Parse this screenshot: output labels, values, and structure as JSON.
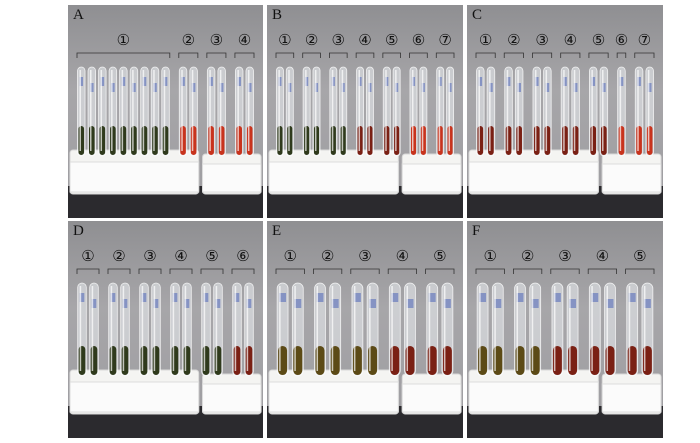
{
  "figure": {
    "panels": [
      {
        "label": "A",
        "groups": [
          "①",
          "②",
          "③",
          "④"
        ],
        "tube_counts": [
          9,
          2,
          2,
          2
        ],
        "contents": [
          "dark-green-sediment",
          "orange-red",
          "orange-red",
          "orange-red"
        ]
      },
      {
        "label": "B",
        "groups": [
          "①",
          "②",
          "③",
          "④",
          "⑤",
          "⑥",
          "⑦"
        ],
        "tube_counts": [
          2,
          2,
          2,
          2,
          2,
          2,
          2
        ],
        "contents": [
          "dark-green-sediment",
          "dark-green-sediment",
          "dark-green-sediment",
          "dark-red",
          "dark-red",
          "orange-red",
          "orange-red"
        ]
      },
      {
        "label": "C",
        "groups": [
          "①",
          "②",
          "③",
          "④",
          "⑤",
          "⑥",
          "⑦"
        ],
        "tube_counts": [
          2,
          2,
          2,
          2,
          2,
          1,
          2
        ],
        "contents": [
          "dark-red",
          "dark-red",
          "dark-red",
          "dark-red",
          "dark-red",
          "orange-red",
          "orange-red"
        ]
      },
      {
        "label": "D",
        "groups": [
          "①",
          "②",
          "③",
          "④",
          "⑤",
          "⑥"
        ],
        "tube_counts": [
          2,
          2,
          2,
          2,
          2,
          2
        ],
        "contents": [
          "dark-green-sediment",
          "dark-green-sediment",
          "dark-green-sediment",
          "dark-green-sediment",
          "dark-green-sediment",
          "dark-red"
        ]
      },
      {
        "label": "E",
        "groups": [
          "①",
          "②",
          "③",
          "④",
          "⑤"
        ],
        "tube_counts": [
          2,
          2,
          2,
          2,
          2
        ],
        "contents": [
          "olive-sediment",
          "olive-sediment",
          "olive-sediment",
          "dark-red",
          "dark-red"
        ]
      },
      {
        "label": "F",
        "groups": [
          "①",
          "②",
          "③",
          "④",
          "⑤"
        ],
        "tube_counts": [
          2,
          2,
          2,
          2,
          2
        ],
        "contents": [
          "olive-sediment",
          "olive-sediment",
          "dark-red",
          "dark-red",
          "dark-red"
        ]
      }
    ],
    "colors": {
      "orange-red": "#c8331d",
      "dark-red": "#7a2014",
      "dark-green-sediment": "#2f3a1c",
      "olive-sediment": "#5c4a16",
      "foam": "#f4f4f2",
      "background": "#9d9ca0"
    }
  }
}
